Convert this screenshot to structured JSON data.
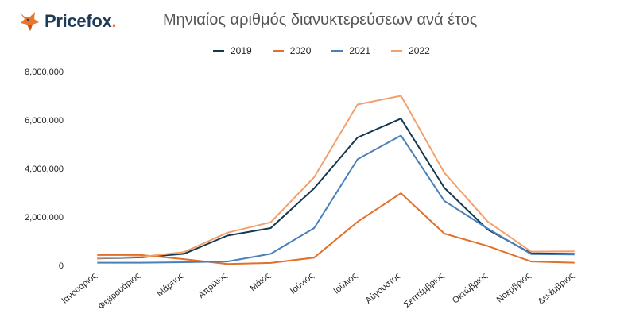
{
  "brand": {
    "name": "Pricefox",
    "suffix": "."
  },
  "colors": {
    "brand_dark": "#1f3b5a",
    "brand_orange": "#e8762c"
  },
  "chart_data": {
    "type": "line",
    "title": "Μηνιαίος αριθμός διανυκτερεύσεων ανά έτος",
    "xlabel": "",
    "ylabel": "",
    "categories": [
      "Ιανουάριος",
      "Φεβρουάριος",
      "Μάρτιος",
      "Απρίλιος",
      "Μάιος",
      "Ιούνιος",
      "Ιούλιος",
      "Αύγουστος",
      "Σεπτέμβριος",
      "Οκτώβριος",
      "Νοέμβριος",
      "Δεκέμβριος"
    ],
    "ylim": [
      0,
      8000000
    ],
    "yticks": [
      0,
      2000000,
      4000000,
      6000000,
      8000000
    ],
    "ytick_labels": [
      "0",
      "2,000,000",
      "4,000,000",
      "6,000,000",
      "8,000,000"
    ],
    "grid": false,
    "legend_position": "top",
    "series": [
      {
        "name": "2019",
        "color": "#14384f",
        "values": [
          290000,
          330000,
          480000,
          1230000,
          1540000,
          3180000,
          5280000,
          6060000,
          3200000,
          1480000,
          500000,
          480000
        ]
      },
      {
        "name": "2020",
        "color": "#e26f2a",
        "values": [
          430000,
          430000,
          260000,
          60000,
          100000,
          320000,
          1800000,
          2980000,
          1310000,
          800000,
          160000,
          110000
        ]
      },
      {
        "name": "2021",
        "color": "#4a80ba",
        "values": [
          110000,
          110000,
          130000,
          160000,
          480000,
          1540000,
          4380000,
          5360000,
          2660000,
          1520000,
          470000,
          450000
        ]
      },
      {
        "name": "2022",
        "color": "#f2a06e",
        "values": [
          300000,
          350000,
          550000,
          1350000,
          1780000,
          3640000,
          6640000,
          7000000,
          3820000,
          1810000,
          570000,
          580000
        ]
      }
    ]
  }
}
